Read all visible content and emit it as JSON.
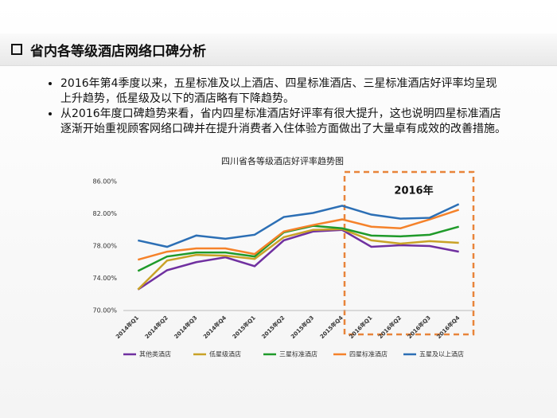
{
  "slide_title": "省内各等级酒店网络口碑分析",
  "bullets": [
    "2016年第4季度以来，五星标准及以上酒店、四星标准酒店、三星标准酒店好评率均呈现上升趋势，低星级及以下的酒店略有下降趋势。",
    "从2016年度口碑趋势来看，省内四星标准酒店好评率有很大提升，这也说明四星标准酒店逐渐开始重视顾客网络口碑并在提升消费者入住体验方面做出了大量卓有成效的改善措施。"
  ],
  "chart_data": {
    "type": "line",
    "title": "四川省各等级酒店好评率趋势图",
    "annotation": "2016年",
    "categories": [
      "2014年Q1",
      "2014年Q2",
      "2014年Q3",
      "2014年Q4",
      "2015年Q1",
      "2015年Q2",
      "2015年Q3",
      "2015年Q4",
      "2016年Q1",
      "2016年Q2",
      "2016年Q3",
      "2016年Q4"
    ],
    "ylim": [
      70,
      86
    ],
    "yticks": [
      {
        "value": 70,
        "label": "70.00%"
      },
      {
        "value": 74,
        "label": "74.00%"
      },
      {
        "value": 78,
        "label": "78.00%"
      },
      {
        "value": 82,
        "label": "82.00%"
      },
      {
        "value": 86,
        "label": "86.00%"
      }
    ],
    "grid": false,
    "legend": "bottom",
    "series": [
      {
        "name": "其他类酒店",
        "color": "#7030a0",
        "values": [
          72.6,
          75.0,
          76.0,
          76.6,
          75.5,
          78.7,
          79.8,
          80.0,
          77.9,
          78.1,
          78.0,
          77.3
        ]
      },
      {
        "name": "低星级酒店",
        "color": "#c9a227",
        "values": [
          72.6,
          76.2,
          76.9,
          76.8,
          76.4,
          79.1,
          80.0,
          80.1,
          78.7,
          78.3,
          78.6,
          78.4
        ]
      },
      {
        "name": "三星标准酒店",
        "color": "#1f9a2a",
        "values": [
          74.9,
          76.7,
          77.2,
          77.2,
          76.7,
          79.7,
          80.5,
          80.2,
          79.3,
          79.2,
          79.4,
          80.4
        ]
      },
      {
        "name": "四星标准酒店",
        "color": "#f5822a",
        "values": [
          76.3,
          77.3,
          77.7,
          77.7,
          77.0,
          79.8,
          80.6,
          81.3,
          80.4,
          80.2,
          81.3,
          82.5
        ]
      },
      {
        "name": "五星及以上酒店",
        "color": "#2c6fb5",
        "values": [
          78.7,
          77.9,
          79.3,
          78.9,
          79.4,
          81.6,
          82.1,
          83.0,
          81.9,
          81.4,
          81.5,
          83.2
        ]
      }
    ]
  }
}
